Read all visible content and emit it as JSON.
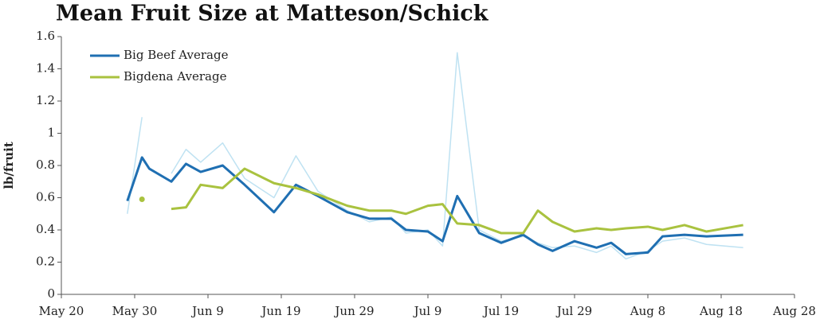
{
  "chart_data": {
    "type": "line",
    "title": "Mean Fruit Size at Matteson/Schick",
    "ylabel": "lb/fruit",
    "x": [
      9,
      11,
      12,
      15,
      17,
      19,
      22,
      25,
      29,
      32,
      35,
      39,
      42,
      45,
      47,
      50,
      52,
      54,
      57,
      60,
      63,
      65,
      67,
      70,
      73,
      75,
      77,
      80,
      82,
      85,
      88,
      93
    ],
    "series": [
      {
        "color": "#bfe2f2",
        "values": [
          0.5,
          1.1,
          null,
          0.75,
          0.9,
          0.82,
          0.94,
          0.72,
          0.6,
          0.86,
          0.64,
          0.52,
          0.45,
          0.48,
          0.38,
          0.4,
          0.3,
          1.5,
          0.4,
          0.33,
          0.36,
          0.32,
          0.29,
          0.3,
          0.26,
          0.3,
          0.22,
          0.27,
          0.33,
          0.35,
          0.31,
          0.29
        ]
      },
      {
        "name": "Big Beef Average",
        "color": "#1f6fb2",
        "values": [
          0.58,
          0.85,
          0.78,
          0.7,
          0.81,
          0.76,
          0.8,
          0.68,
          0.51,
          0.68,
          0.61,
          0.51,
          0.47,
          0.47,
          0.4,
          0.39,
          0.33,
          0.61,
          0.38,
          0.32,
          0.37,
          0.31,
          0.27,
          0.33,
          0.29,
          0.32,
          0.25,
          0.26,
          0.36,
          0.37,
          0.36,
          0.37
        ]
      },
      {
        "name": "Bigdena Average",
        "color": "#a9c23f",
        "values": [
          null,
          0.59,
          null,
          0.53,
          0.54,
          0.68,
          0.66,
          0.78,
          0.69,
          0.66,
          0.62,
          0.55,
          0.52,
          0.52,
          0.5,
          0.55,
          0.56,
          0.44,
          0.43,
          0.38,
          0.38,
          0.52,
          0.45,
          0.39,
          0.41,
          0.4,
          0.41,
          0.42,
          0.4,
          0.43,
          0.39,
          0.43
        ]
      }
    ],
    "xlim": [
      0,
      100
    ],
    "xticks": [
      {
        "value": 0,
        "label": "May 20"
      },
      {
        "value": 10,
        "label": "May 30"
      },
      {
        "value": 20,
        "label": "Jun 9"
      },
      {
        "value": 30,
        "label": "Jun 19"
      },
      {
        "value": 40,
        "label": "Jun 29"
      },
      {
        "value": 50,
        "label": "Jul 9"
      },
      {
        "value": 60,
        "label": "Jul 19"
      },
      {
        "value": 70,
        "label": "Jul 29"
      },
      {
        "value": 80,
        "label": "Aug 8"
      },
      {
        "value": 90,
        "label": "Aug 18"
      },
      {
        "value": 100,
        "label": "Aug 28"
      }
    ],
    "ylim": [
      0,
      1.6
    ],
    "yticks": [
      0,
      0.2,
      0.4,
      0.6,
      0.8,
      1,
      1.2,
      1.4,
      1.6
    ],
    "grid": false,
    "legend": "upper left"
  }
}
